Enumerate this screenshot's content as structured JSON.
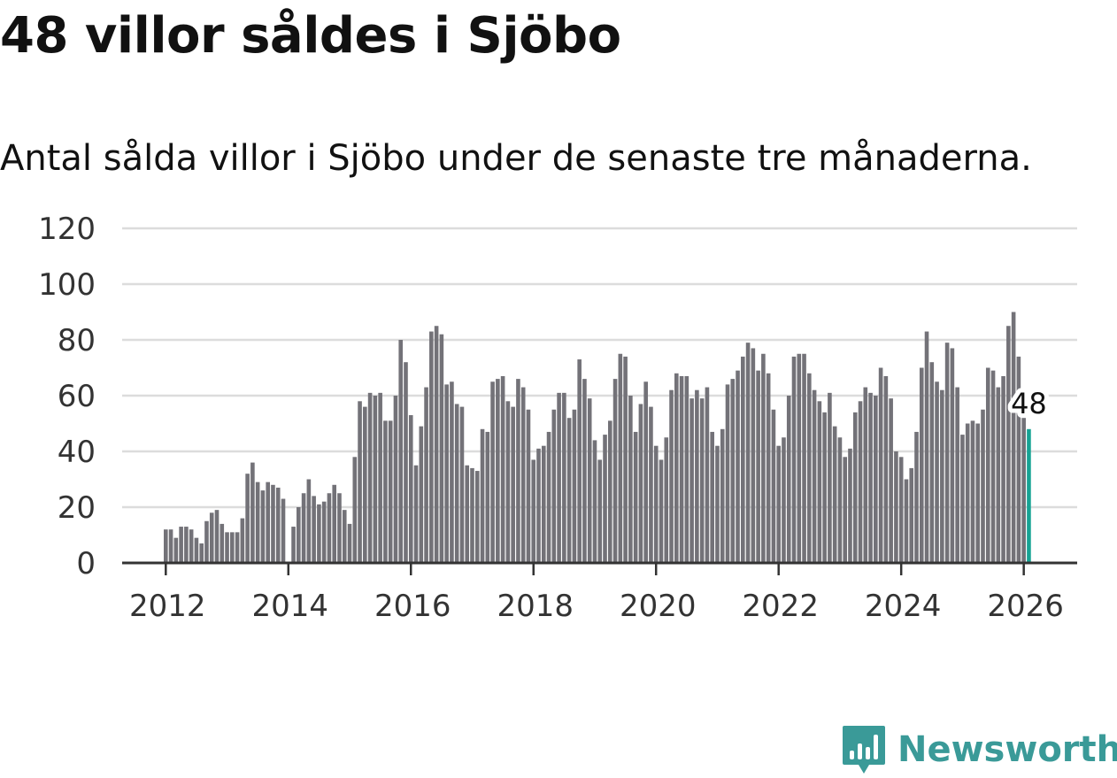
{
  "title": "48 villor såldes i Sjöbo",
  "subtitle": "Antal sålda villor i Sjöbo under de senaste tre månaderna.",
  "brand": {
    "name": "Newsworthy",
    "color": "#3a9a98"
  },
  "colors": {
    "bar": "#737278",
    "highlight": "#16a394",
    "grid": "#dcdcdc",
    "axis": "#333333"
  },
  "chart_data": {
    "type": "bar",
    "title": "48 villor såldes i Sjöbo",
    "xlabel": "",
    "ylabel": "",
    "ylim": [
      0,
      120
    ],
    "yticks": [
      0,
      20,
      40,
      60,
      80,
      100,
      120
    ],
    "xticks": [
      "2012",
      "2014",
      "2016",
      "2018",
      "2020",
      "2022",
      "2024",
      "2026"
    ],
    "start": "2012-01",
    "grid": true,
    "annotation": {
      "label": "48",
      "index": 169
    },
    "values": [
      12,
      12,
      9,
      13,
      13,
      12,
      9,
      7,
      15,
      18,
      19,
      14,
      11,
      11,
      11,
      16,
      32,
      36,
      29,
      26,
      29,
      28,
      27,
      23,
      0,
      13,
      20,
      25,
      30,
      24,
      21,
      22,
      25,
      28,
      25,
      19,
      14,
      38,
      58,
      56,
      61,
      60,
      61,
      51,
      51,
      60,
      80,
      72,
      53,
      35,
      49,
      63,
      83,
      85,
      82,
      64,
      65,
      57,
      56,
      35,
      34,
      33,
      48,
      47,
      65,
      66,
      67,
      58,
      56,
      66,
      63,
      55,
      37,
      41,
      42,
      47,
      55,
      61,
      61,
      52,
      55,
      73,
      66,
      59,
      44,
      37,
      46,
      51,
      66,
      75,
      74,
      60,
      47,
      57,
      65,
      56,
      42,
      37,
      45,
      62,
      68,
      67,
      67,
      59,
      62,
      59,
      63,
      47,
      42,
      48,
      64,
      66,
      69,
      74,
      79,
      77,
      69,
      75,
      68,
      55,
      42,
      45,
      60,
      74,
      75,
      75,
      68,
      62,
      58,
      54,
      61,
      49,
      45,
      38,
      41,
      54,
      58,
      63,
      61,
      60,
      70,
      67,
      59,
      40,
      38,
      30,
      34,
      47,
      70,
      83,
      72,
      65,
      62,
      79,
      77,
      63,
      46,
      50,
      51,
      50,
      55,
      70,
      69,
      63,
      67,
      85,
      90,
      74,
      52,
      48
    ]
  }
}
